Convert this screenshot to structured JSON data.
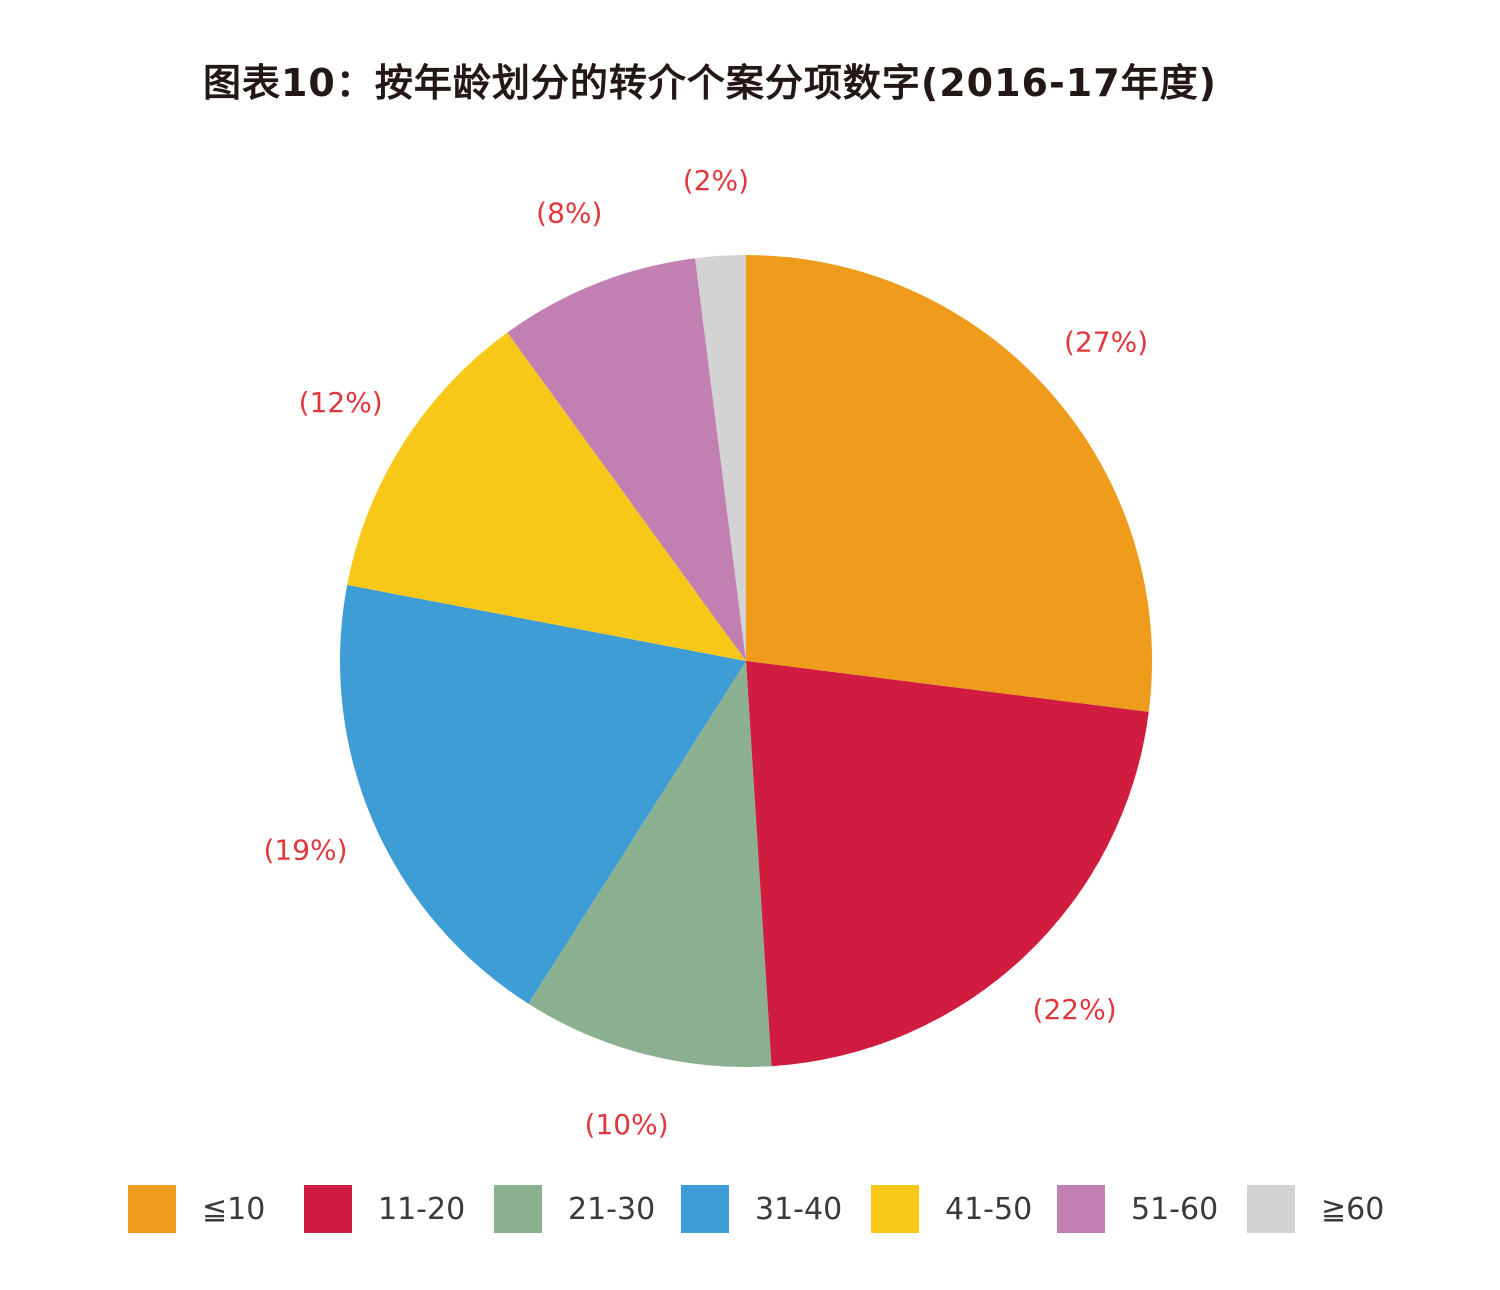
{
  "chart_data": {
    "type": "pie",
    "title": "图表10：按年龄划分的转介个案分项数字(2016-17年度)",
    "slices": [
      {
        "label": "≦10",
        "value": 27,
        "display": "(27%)",
        "color": "#ef9b1b"
      },
      {
        "label": "11-20",
        "value": 22,
        "display": "(22%)",
        "color": "#d01c3f"
      },
      {
        "label": "21-30",
        "value": 10,
        "display": "(10%)",
        "color": "#8bb08f"
      },
      {
        "label": "31-40",
        "value": 19,
        "display": "(19%)",
        "color": "#3e9dd5"
      },
      {
        "label": "41-50",
        "value": 12,
        "display": "(12%)",
        "color": "#f8c818"
      },
      {
        "label": "51-60",
        "value": 8,
        "display": "(8%)",
        "color": "#c27fb2"
      },
      {
        "label": "≧60",
        "value": 2,
        "display": "(2%)",
        "color": "#d3d3d3"
      }
    ],
    "start": "12 o'clock",
    "direction": "clockwise",
    "legend_position": "bottom",
    "label_color": "#e0373c"
  }
}
